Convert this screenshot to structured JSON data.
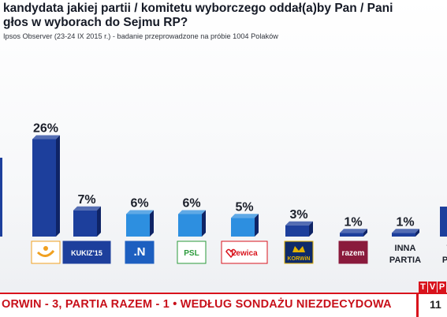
{
  "header": {
    "title_line1": "kandydata jakiej partii / komitetu wyborczego oddał(a)by Pan / Pani",
    "title_line2": "głos w wyborach do Sejmu RP?",
    "source": "Ipsos Observer (23-24 IX 2015 r.) - badanie przeprowadzone na próbie 1004 Polaków"
  },
  "chart_data": {
    "type": "bar",
    "title": "kandydata jakiej partii / komitetu wyborczego oddał(a)by Pan / Pani głos w wyborach do Sejmu RP?",
    "categories": [
      "PO",
      "Kukiz'15",
      ".N",
      "PSL",
      "Zjednoczona Lewica",
      "KORWiN",
      "Razem",
      "INNA PARTIA",
      "TRUDNO POWIEDZIEĆ"
    ],
    "category_labels_shown": {
      "INNA PARTIA": "INNA PARTIA",
      "TRUDNO POWIEDZIEĆ": "TR POW"
    },
    "values": [
      26,
      7,
      6,
      6,
      5,
      3,
      1,
      1,
      null
    ],
    "value_labels": [
      "26%",
      "7%",
      "6%",
      "6%",
      "5%",
      "3%",
      "1%",
      "1%",
      ""
    ],
    "ylim": [
      0,
      30
    ],
    "grid": false,
    "legend": "none",
    "colors": {
      "bar_dark": "#1d3f9c",
      "bar_light": "#2d8fe0",
      "bar_shade": "#0f2466"
    }
  },
  "logos": [
    {
      "icon": "po-logo-icon",
      "text": ""
    },
    {
      "icon": "kukiz-logo-icon",
      "text": "KUKIZ'15"
    },
    {
      "icon": "nowoczesna-logo-icon",
      "text": ".N"
    },
    {
      "icon": "psl-logo-icon",
      "text": "PSL"
    },
    {
      "icon": "lewica-logo-icon",
      "text": "Lewica"
    },
    {
      "icon": "korwin-logo-icon",
      "text": "KORWiN"
    },
    {
      "icon": "razem-logo-icon",
      "text": "razem"
    },
    {
      "icon": "",
      "text": "INNA PARTIA"
    },
    {
      "icon": "",
      "text": "TR POW"
    }
  ],
  "ticker": {
    "text": "ORWIN - 3, PARTIA RAZEM - 1 • WEDŁUG SONDAŻU NIEZDECYDOWA",
    "time": "11",
    "brand": "TVP"
  }
}
